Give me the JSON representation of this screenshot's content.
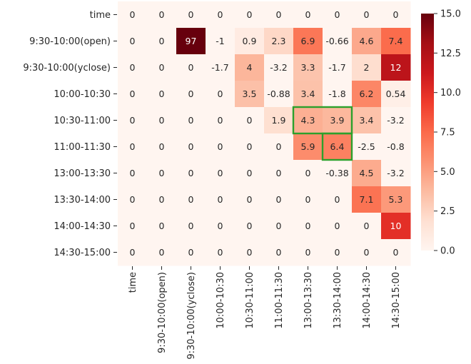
{
  "chart_data": {
    "type": "heatmap",
    "row_labels": [
      "time",
      "9:30-10:00(open)",
      "9:30-10:00(yclose)",
      "10:00-10:30",
      "10:30-11:00",
      "11:00-11:30",
      "13:00-13:30",
      "13:30-14:00",
      "14:00-14:30",
      "14:30-15:00"
    ],
    "col_labels": [
      "time",
      "9:30-10:00(open)",
      "9:30-10:00(yclose)",
      "10:00-10:30",
      "10:30-11:00",
      "11:00-11:30",
      "13:00-13:30",
      "13:30-14:00",
      "14:00-14:30",
      "14:30-15:00"
    ],
    "values": [
      [
        0,
        0,
        0,
        0,
        0,
        0,
        0,
        0,
        0,
        0
      ],
      [
        0,
        0,
        97,
        -1,
        0.9,
        2.3,
        6.9,
        -0.66,
        4.6,
        7.4
      ],
      [
        0,
        0,
        0,
        -1.7,
        4,
        -3.2,
        3.3,
        -1.7,
        2,
        12
      ],
      [
        0,
        0,
        0,
        0,
        3.5,
        -0.88,
        3.4,
        -1.8,
        6.2,
        0.54
      ],
      [
        0,
        0,
        0,
        0,
        0,
        1.9,
        4.3,
        3.9,
        3.4,
        -3.2
      ],
      [
        0,
        0,
        0,
        0,
        0,
        0,
        5.9,
        6.4,
        -2.5,
        -0.8
      ],
      [
        0,
        0,
        0,
        0,
        0,
        0,
        0,
        -0.38,
        4.5,
        -3.2
      ],
      [
        0,
        0,
        0,
        0,
        0,
        0,
        0,
        0,
        7.1,
        5.3
      ],
      [
        0,
        0,
        0,
        0,
        0,
        0,
        0,
        0,
        0,
        10
      ],
      [
        0,
        0,
        0,
        0,
        0,
        0,
        0,
        0,
        0,
        0
      ]
    ],
    "value_labels": [
      [
        "0",
        "0",
        "0",
        "0",
        "0",
        "0",
        "0",
        "0",
        "0",
        "0"
      ],
      [
        "0",
        "0",
        "97",
        "-1",
        "0.9",
        "2.3",
        "6.9",
        "-0.66",
        "4.6",
        "7.4"
      ],
      [
        "0",
        "0",
        "0",
        "-1.7",
        "4",
        "-3.2",
        "3.3",
        "-1.7",
        "2",
        "12"
      ],
      [
        "0",
        "0",
        "0",
        "0",
        "3.5",
        "-0.88",
        "3.4",
        "-1.8",
        "6.2",
        "0.54"
      ],
      [
        "0",
        "0",
        "0",
        "0",
        "0",
        "1.9",
        "4.3",
        "3.9",
        "3.4",
        "-3.2"
      ],
      [
        "0",
        "0",
        "0",
        "0",
        "0",
        "0",
        "5.9",
        "6.4",
        "-2.5",
        "-0.8"
      ],
      [
        "0",
        "0",
        "0",
        "0",
        "0",
        "0",
        "0",
        "-0.38",
        "4.5",
        "-3.2"
      ],
      [
        "0",
        "0",
        "0",
        "0",
        "0",
        "0",
        "0",
        "0",
        "7.1",
        "5.3"
      ],
      [
        "0",
        "0",
        "0",
        "0",
        "0",
        "0",
        "0",
        "0",
        "0",
        "10"
      ],
      [
        "0",
        "0",
        "0",
        "0",
        "0",
        "0",
        "0",
        "0",
        "0",
        "0"
      ]
    ],
    "vmin": 0,
    "vmax": 15,
    "colormap": "Reds",
    "colorbar_ticks": [
      0,
      2.5,
      5,
      7.5,
      10,
      12.5,
      15
    ],
    "colorbar_tick_labels": [
      "0.0",
      "2.5",
      "5.0",
      "7.5",
      "10.0",
      "12.5",
      "15.0"
    ],
    "highlights": [
      {
        "rows": [
          4,
          4
        ],
        "cols": [
          6,
          7
        ],
        "color": "#2ca02c"
      },
      {
        "rows": [
          5,
          5
        ],
        "cols": [
          7,
          7
        ],
        "color": "#2ca02c"
      }
    ]
  }
}
